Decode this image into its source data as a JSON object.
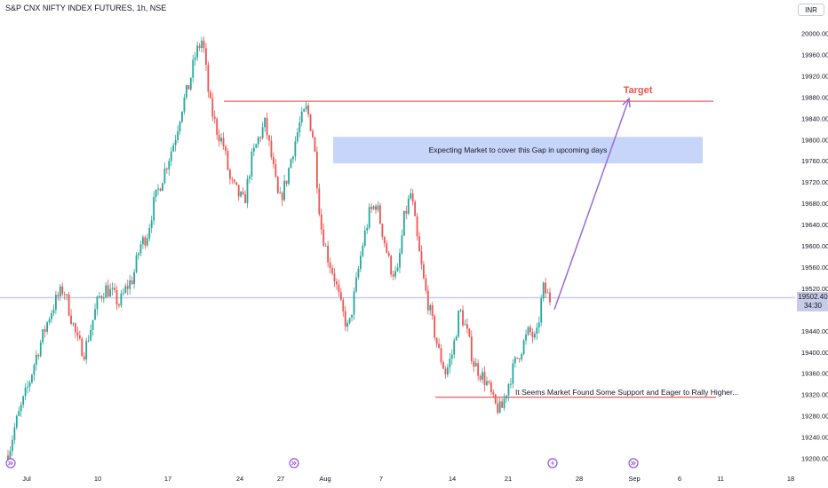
{
  "header": {
    "title": "S&P CNX NIFTY INDEX FUTURES, 1h, NSE",
    "currency": "INR"
  },
  "price_badge": {
    "price": "19502.40",
    "countdown": "34:30"
  },
  "colors": {
    "up": "#26a69a",
    "down": "#ef5350",
    "level_line": "#f05a5a",
    "gap_box": "#c7d5fb",
    "arrow": "#9b6cd4",
    "current_price_line": "#c8cbe8",
    "target_text": "#ef5350",
    "event_icon": "#8e54e9"
  },
  "chart_data": {
    "type": "candlestick",
    "xlabel": "",
    "ylabel": "",
    "ylim": [
      19180,
      20040
    ],
    "grid": false,
    "y_ticks": [
      "20000.00",
      "19960.00",
      "19920.00",
      "19880.00",
      "19840.00",
      "19800.00",
      "19760.00",
      "19720.00",
      "19680.00",
      "19640.00",
      "19600.00",
      "19560.00",
      "19520.00",
      "19440.00",
      "19400.00",
      "19360.00",
      "19320.00",
      "19280.00",
      "19240.00",
      "19200.00"
    ],
    "x_ticks": [
      "Jul",
      "10",
      "17",
      "24",
      "27",
      "Aug",
      "7",
      "14",
      "21",
      "28",
      "Sep",
      "6",
      "11",
      "18"
    ],
    "ohlc_anchor_closes": [
      19205,
      19260,
      19300,
      19340,
      19390,
      19430,
      19470,
      19500,
      19520,
      19470,
      19420,
      19400,
      19450,
      19500,
      19520,
      19510,
      19490,
      19520,
      19540,
      19600,
      19620,
      19680,
      19720,
      19760,
      19800,
      19860,
      19900,
      19960,
      19990,
      19870,
      19820,
      19790,
      19720,
      19700,
      19680,
      19760,
      19800,
      19830,
      19760,
      19680,
      19720,
      19780,
      19830,
      19860,
      19800,
      19640,
      19580,
      19540,
      19480,
      19440,
      19520,
      19600,
      19660,
      19680,
      19620,
      19560,
      19540,
      19650,
      19700,
      19600,
      19520,
      19460,
      19400,
      19360,
      19400,
      19480,
      19440,
      19380,
      19360,
      19340,
      19300,
      19290,
      19340,
      19380,
      19410,
      19440,
      19420,
      19520,
      19500
    ],
    "levels": [
      {
        "name": "resistance",
        "price": 19872
      },
      {
        "name": "support",
        "price": 19315
      },
      {
        "name": "current",
        "price": 19502.4
      }
    ],
    "gap_zone": {
      "high": 19805,
      "low": 19755
    },
    "annotations": {
      "target": "Target",
      "gap_note": "Expecting Market to cover this Gap in upcoming days",
      "support_note": "It Seems Market Found Some Support and Eager to Rally Higher..."
    }
  }
}
